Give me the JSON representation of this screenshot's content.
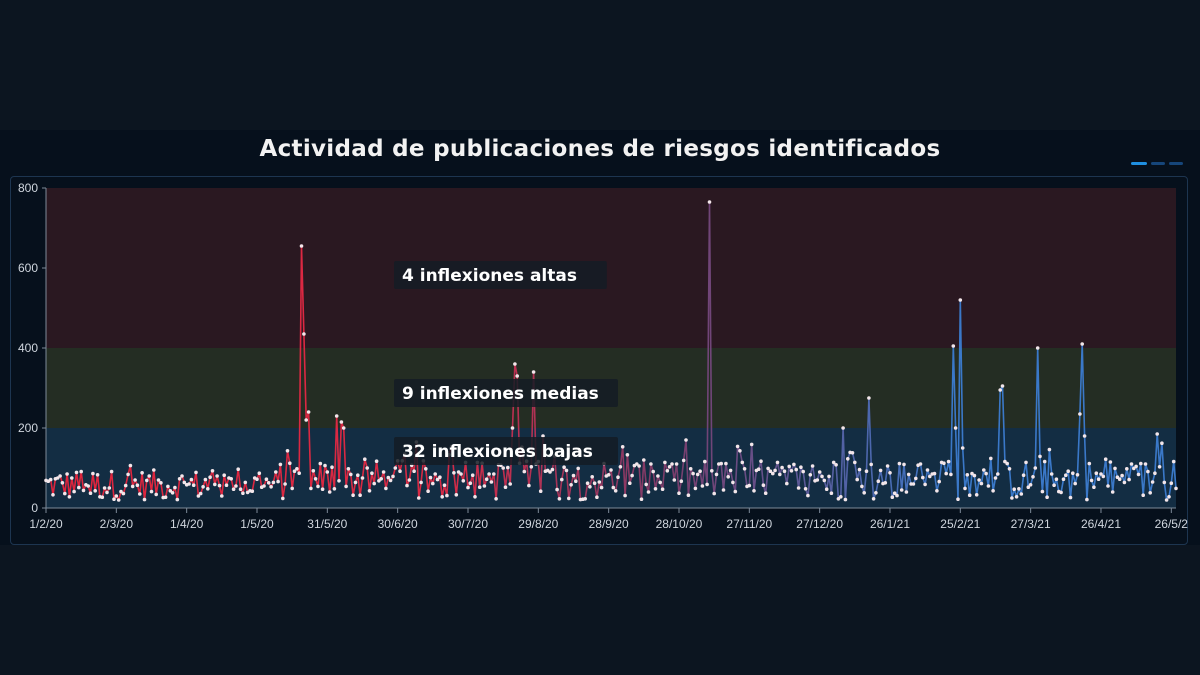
{
  "chart_data": {
    "type": "line",
    "title": "Actividad de publicaciones de riesgos identificados",
    "ylim": [
      0,
      800
    ],
    "y_ticks": [
      "0",
      "200",
      "400",
      "600",
      "800"
    ],
    "x_tick_labels": [
      "1/2/20",
      "2/3/20",
      "1/4/20",
      "1/5/20",
      "31/5/20",
      "30/6/20",
      "30/7/20",
      "29/8/20",
      "28/9/20",
      "28/10/20",
      "27/11/20",
      "27/12/20",
      "26/1/21",
      "25/2/21",
      "27/3/21",
      "26/4/21",
      "26/5/2"
    ],
    "x_tick_index": [
      0,
      30,
      60,
      90,
      120,
      150,
      180,
      210,
      240,
      270,
      300,
      330,
      360,
      390,
      420,
      450,
      480
    ],
    "n_points": 483,
    "bands": [
      {
        "from": 0,
        "to": 200,
        "color": "#16324a"
      },
      {
        "from": 200,
        "to": 400,
        "color": "#2a3325"
      },
      {
        "from": 400,
        "to": 800,
        "color": "#311a22"
      }
    ],
    "annotations": [
      {
        "text": "4 inflexiones altas",
        "y": 580
      },
      {
        "text": "9 inflexiones medias",
        "y": 285
      },
      {
        "text": "32 inflexiones bajas",
        "y": 140
      }
    ],
    "spikes": [
      {
        "i": 109,
        "v": 655
      },
      {
        "i": 110,
        "v": 435
      },
      {
        "i": 111,
        "v": 220
      },
      {
        "i": 112,
        "v": 240
      },
      {
        "i": 124,
        "v": 230
      },
      {
        "i": 126,
        "v": 215
      },
      {
        "i": 127,
        "v": 200
      },
      {
        "i": 158,
        "v": 165
      },
      {
        "i": 199,
        "v": 200
      },
      {
        "i": 200,
        "v": 360
      },
      {
        "i": 201,
        "v": 330
      },
      {
        "i": 208,
        "v": 340
      },
      {
        "i": 212,
        "v": 180
      },
      {
        "i": 283,
        "v": 765
      },
      {
        "i": 340,
        "v": 200
      },
      {
        "i": 351,
        "v": 275
      },
      {
        "i": 387,
        "v": 405
      },
      {
        "i": 388,
        "v": 200
      },
      {
        "i": 390,
        "v": 520
      },
      {
        "i": 391,
        "v": 150
      },
      {
        "i": 407,
        "v": 295
      },
      {
        "i": 408,
        "v": 305
      },
      {
        "i": 423,
        "v": 400
      },
      {
        "i": 441,
        "v": 235
      },
      {
        "i": 442,
        "v": 410
      },
      {
        "i": 443,
        "v": 180
      },
      {
        "i": 474,
        "v": 185
      }
    ],
    "baseline": {
      "low": 20,
      "high": 120,
      "early_high": 95
    },
    "series_gradient": [
      "#e0243c",
      "#7a3c6a",
      "#3a78c8"
    ]
  }
}
